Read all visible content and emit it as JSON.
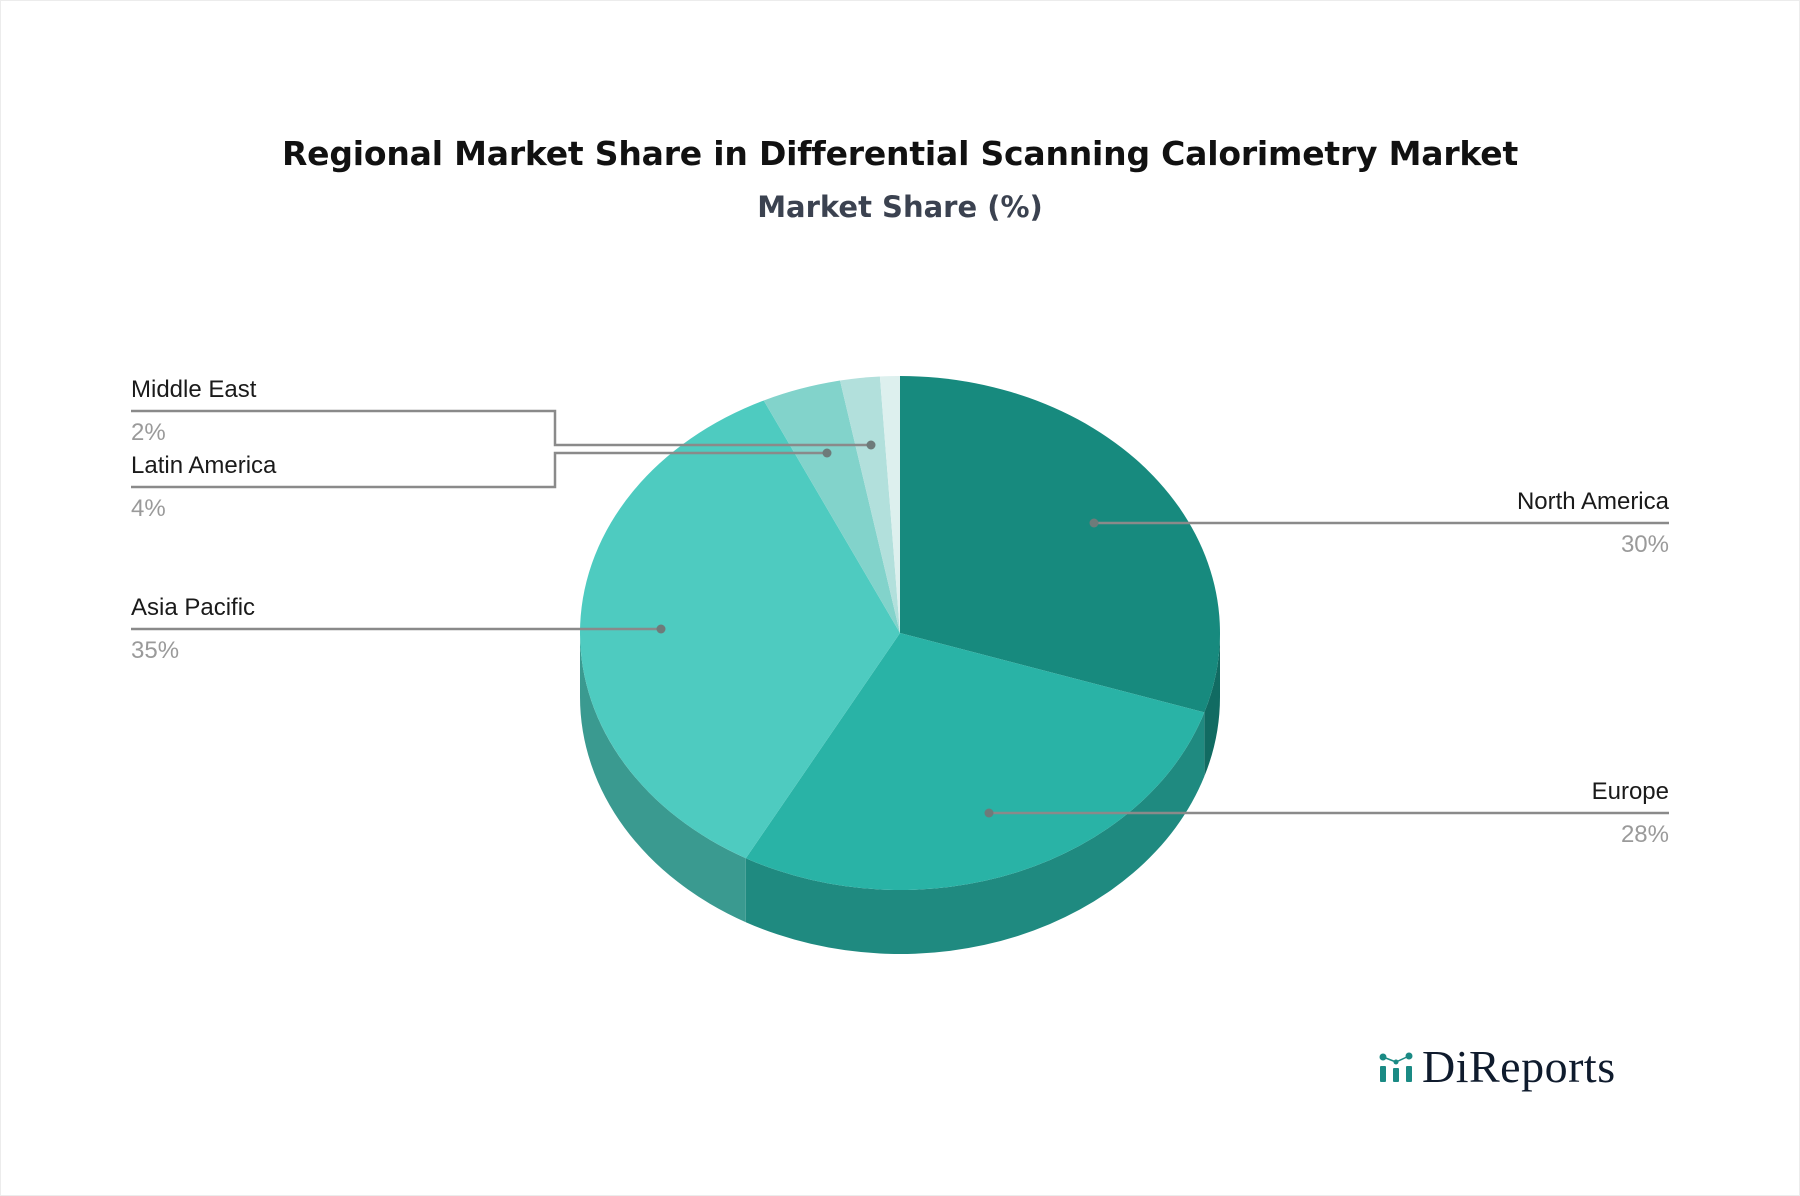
{
  "header": {
    "title": "Regional Market Share in Differential Scanning Calorimetry Market",
    "subtitle": "Market Share (%)"
  },
  "brand": {
    "name": "DiReports",
    "icon": "bar-chart-nodes-icon",
    "icon_color": "#1a8a84",
    "text_color": "#0f1b2d"
  },
  "chart_data": {
    "type": "pie",
    "style": "3d-pie",
    "title": "Regional Market Share in Differential Scanning Calorimetry Market",
    "subtitle": "Market Share (%)",
    "unit": "%",
    "start_angle": "12 o'clock, clockwise",
    "legend": "leader-line labels",
    "series": [
      {
        "name": "North America",
        "value": 30,
        "label": "30%",
        "color": "#178a7e",
        "side_color": "#116b62"
      },
      {
        "name": "Europe",
        "value": 28,
        "label": "28%",
        "color": "#29b3a6",
        "side_color": "#1f8a80"
      },
      {
        "name": "Asia Pacific",
        "value": 35,
        "label": "35%",
        "color": "#4ecbc0",
        "side_color": "#3a9a90"
      },
      {
        "name": "Latin America",
        "value": 4,
        "label": "4%",
        "color": "#82d3cb",
        "side_color": "#63a8a1"
      },
      {
        "name": "Middle East",
        "value": 2,
        "label": "2%",
        "color": "#b2e0dc",
        "side_color": "#8cb7b3"
      },
      {
        "name": "",
        "value": 1,
        "label": "",
        "color": "#ddf0ee",
        "side_color": "#b5c9c7"
      }
    ]
  },
  "labels": [
    {
      "name": "North America",
      "value": "30%",
      "side": "right"
    },
    {
      "name": "Europe",
      "value": "28%",
      "side": "right"
    },
    {
      "name": "Asia Pacific",
      "value": "35%",
      "side": "left"
    },
    {
      "name": "Latin America",
      "value": "4%",
      "side": "left"
    },
    {
      "name": "Middle East",
      "value": "2%",
      "side": "left"
    }
  ]
}
